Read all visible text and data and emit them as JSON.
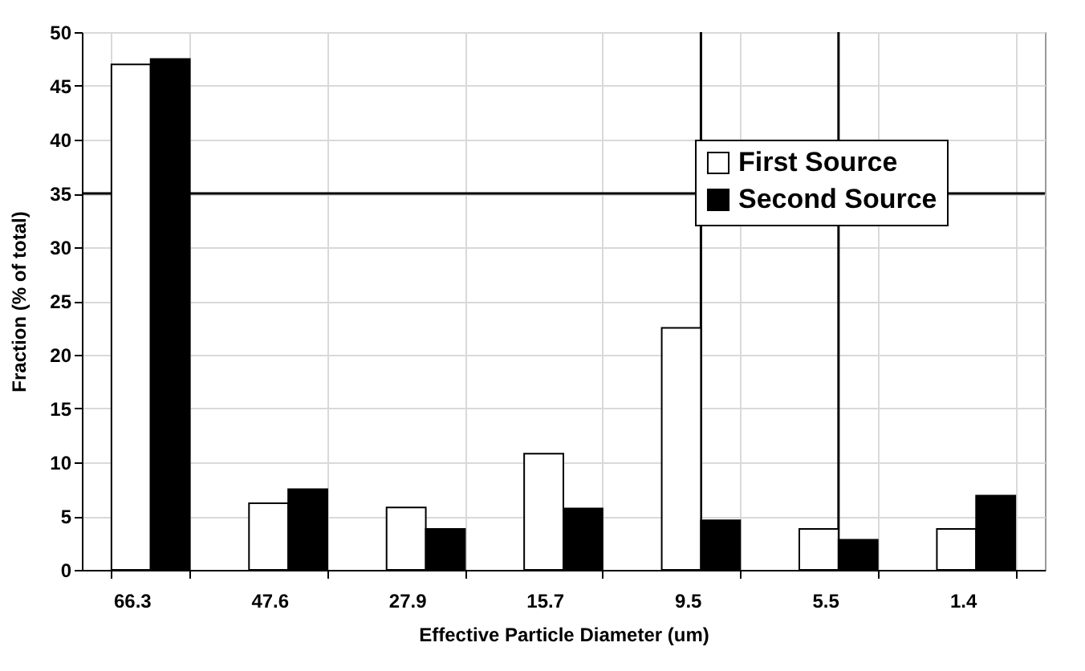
{
  "chart_data": {
    "type": "bar",
    "xlabel": "Effective Particle Diameter (um)",
    "ylabel": "Fraction (% of total)",
    "categories": [
      "66.3",
      "47.6",
      "27.9",
      "15.7",
      "9.5",
      "5.5",
      "1.4"
    ],
    "series": [
      {
        "name": "First Source",
        "color": "#ffffff",
        "values": [
          47.0,
          6.2,
          5.8,
          10.8,
          22.5,
          3.8,
          3.8
        ]
      },
      {
        "name": "Second Source",
        "color": "#000000",
        "values": [
          47.5,
          7.5,
          3.8,
          5.7,
          4.6,
          2.8,
          6.9
        ]
      }
    ],
    "ylim": [
      0,
      50
    ],
    "yticks": [
      0,
      5,
      10,
      15,
      20,
      25,
      30,
      35,
      40,
      45,
      50
    ],
    "ref_lines": [
      {
        "axis": "y",
        "value": 35,
        "color": "#000000"
      },
      {
        "axis": "x",
        "value": "9.5",
        "color": "#000000"
      },
      {
        "axis": "x",
        "value": "5.5",
        "color": "#000000"
      }
    ],
    "grid": true,
    "legend": "top right"
  }
}
